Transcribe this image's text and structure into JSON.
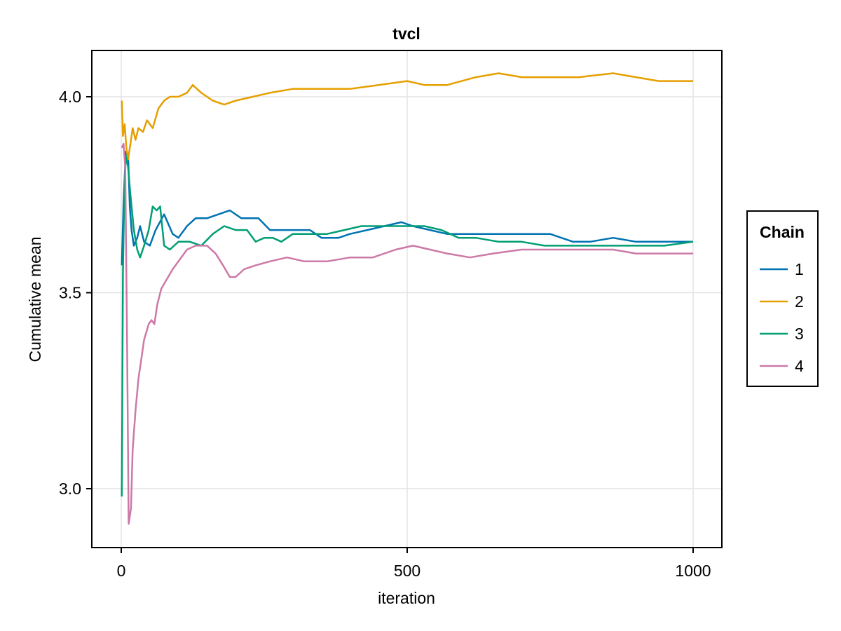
{
  "chart_data": {
    "type": "line",
    "title": "tvcl",
    "xlabel": "iteration",
    "ylabel": "Cumulative mean",
    "xlim": [
      -50,
      1050
    ],
    "ylim": [
      2.85,
      4.12
    ],
    "xticks": [
      0,
      500,
      1000
    ],
    "xtick_labels": [
      "0",
      "500",
      "1000"
    ],
    "yticks": [
      3.0,
      3.5,
      4.0
    ],
    "ytick_labels": [
      "3.0",
      "3.5",
      "4.0"
    ],
    "grid": true,
    "legend": {
      "title": "Chain",
      "position": "right",
      "entries": [
        "1",
        "2",
        "3",
        "4"
      ]
    },
    "series": [
      {
        "name": "1",
        "color": "#0072B2",
        "points": [
          [
            1,
            3.57
          ],
          [
            4,
            3.73
          ],
          [
            8,
            3.86
          ],
          [
            12,
            3.85
          ],
          [
            15,
            3.72
          ],
          [
            18,
            3.66
          ],
          [
            22,
            3.62
          ],
          [
            28,
            3.64
          ],
          [
            33,
            3.67
          ],
          [
            40,
            3.63
          ],
          [
            50,
            3.62
          ],
          [
            60,
            3.66
          ],
          [
            75,
            3.7
          ],
          [
            90,
            3.65
          ],
          [
            100,
            3.64
          ],
          [
            115,
            3.67
          ],
          [
            130,
            3.69
          ],
          [
            150,
            3.69
          ],
          [
            170,
            3.7
          ],
          [
            190,
            3.71
          ],
          [
            210,
            3.69
          ],
          [
            240,
            3.69
          ],
          [
            260,
            3.66
          ],
          [
            280,
            3.66
          ],
          [
            300,
            3.66
          ],
          [
            330,
            3.66
          ],
          [
            350,
            3.64
          ],
          [
            380,
            3.64
          ],
          [
            400,
            3.65
          ],
          [
            430,
            3.66
          ],
          [
            460,
            3.67
          ],
          [
            490,
            3.68
          ],
          [
            510,
            3.67
          ],
          [
            540,
            3.66
          ],
          [
            570,
            3.65
          ],
          [
            600,
            3.65
          ],
          [
            650,
            3.65
          ],
          [
            700,
            3.65
          ],
          [
            750,
            3.65
          ],
          [
            790,
            3.63
          ],
          [
            820,
            3.63
          ],
          [
            860,
            3.64
          ],
          [
            900,
            3.63
          ],
          [
            940,
            3.63
          ],
          [
            970,
            3.63
          ],
          [
            1000,
            3.63
          ]
        ]
      },
      {
        "name": "2",
        "color": "#E69F00",
        "points": [
          [
            1,
            3.99
          ],
          [
            3,
            3.9
          ],
          [
            6,
            3.93
          ],
          [
            9,
            3.87
          ],
          [
            12,
            3.84
          ],
          [
            16,
            3.88
          ],
          [
            20,
            3.92
          ],
          [
            25,
            3.89
          ],
          [
            30,
            3.92
          ],
          [
            38,
            3.91
          ],
          [
            45,
            3.94
          ],
          [
            55,
            3.92
          ],
          [
            65,
            3.97
          ],
          [
            75,
            3.99
          ],
          [
            85,
            4.0
          ],
          [
            100,
            4.0
          ],
          [
            115,
            4.01
          ],
          [
            125,
            4.03
          ],
          [
            140,
            4.01
          ],
          [
            160,
            3.99
          ],
          [
            180,
            3.98
          ],
          [
            200,
            3.99
          ],
          [
            230,
            4.0
          ],
          [
            260,
            4.01
          ],
          [
            300,
            4.02
          ],
          [
            350,
            4.02
          ],
          [
            400,
            4.02
          ],
          [
            450,
            4.03
          ],
          [
            500,
            4.04
          ],
          [
            530,
            4.03
          ],
          [
            570,
            4.03
          ],
          [
            620,
            4.05
          ],
          [
            660,
            4.06
          ],
          [
            700,
            4.05
          ],
          [
            750,
            4.05
          ],
          [
            800,
            4.05
          ],
          [
            860,
            4.06
          ],
          [
            900,
            4.05
          ],
          [
            940,
            4.04
          ],
          [
            970,
            4.04
          ],
          [
            1000,
            4.04
          ]
        ]
      },
      {
        "name": "3",
        "color": "#009E73",
        "points": [
          [
            1,
            2.98
          ],
          [
            3,
            3.55
          ],
          [
            5,
            3.73
          ],
          [
            8,
            3.85
          ],
          [
            12,
            3.82
          ],
          [
            16,
            3.75
          ],
          [
            22,
            3.66
          ],
          [
            28,
            3.61
          ],
          [
            33,
            3.59
          ],
          [
            40,
            3.62
          ],
          [
            48,
            3.66
          ],
          [
            55,
            3.72
          ],
          [
            62,
            3.71
          ],
          [
            68,
            3.72
          ],
          [
            75,
            3.62
          ],
          [
            85,
            3.61
          ],
          [
            100,
            3.63
          ],
          [
            120,
            3.63
          ],
          [
            140,
            3.62
          ],
          [
            160,
            3.65
          ],
          [
            180,
            3.67
          ],
          [
            200,
            3.66
          ],
          [
            220,
            3.66
          ],
          [
            235,
            3.63
          ],
          [
            250,
            3.64
          ],
          [
            265,
            3.64
          ],
          [
            280,
            3.63
          ],
          [
            300,
            3.65
          ],
          [
            330,
            3.65
          ],
          [
            360,
            3.65
          ],
          [
            390,
            3.66
          ],
          [
            420,
            3.67
          ],
          [
            450,
            3.67
          ],
          [
            480,
            3.67
          ],
          [
            500,
            3.67
          ],
          [
            530,
            3.67
          ],
          [
            560,
            3.66
          ],
          [
            590,
            3.64
          ],
          [
            620,
            3.64
          ],
          [
            660,
            3.63
          ],
          [
            700,
            3.63
          ],
          [
            740,
            3.62
          ],
          [
            780,
            3.62
          ],
          [
            820,
            3.62
          ],
          [
            860,
            3.62
          ],
          [
            900,
            3.62
          ],
          [
            950,
            3.62
          ],
          [
            1000,
            3.63
          ]
        ]
      },
      {
        "name": "4",
        "color": "#CC79A7",
        "points": [
          [
            1,
            3.87
          ],
          [
            4,
            3.88
          ],
          [
            7,
            3.82
          ],
          [
            10,
            3.4
          ],
          [
            13,
            2.91
          ],
          [
            17,
            2.95
          ],
          [
            20,
            3.1
          ],
          [
            25,
            3.2
          ],
          [
            30,
            3.28
          ],
          [
            35,
            3.33
          ],
          [
            40,
            3.38
          ],
          [
            48,
            3.42
          ],
          [
            53,
            3.43
          ],
          [
            58,
            3.42
          ],
          [
            63,
            3.47
          ],
          [
            70,
            3.51
          ],
          [
            78,
            3.53
          ],
          [
            90,
            3.56
          ],
          [
            100,
            3.58
          ],
          [
            115,
            3.61
          ],
          [
            130,
            3.62
          ],
          [
            150,
            3.62
          ],
          [
            165,
            3.6
          ],
          [
            178,
            3.57
          ],
          [
            190,
            3.54
          ],
          [
            200,
            3.54
          ],
          [
            215,
            3.56
          ],
          [
            235,
            3.57
          ],
          [
            260,
            3.58
          ],
          [
            290,
            3.59
          ],
          [
            320,
            3.58
          ],
          [
            360,
            3.58
          ],
          [
            400,
            3.59
          ],
          [
            440,
            3.59
          ],
          [
            480,
            3.61
          ],
          [
            510,
            3.62
          ],
          [
            540,
            3.61
          ],
          [
            570,
            3.6
          ],
          [
            610,
            3.59
          ],
          [
            650,
            3.6
          ],
          [
            700,
            3.61
          ],
          [
            740,
            3.61
          ],
          [
            780,
            3.61
          ],
          [
            820,
            3.61
          ],
          [
            860,
            3.61
          ],
          [
            900,
            3.6
          ],
          [
            950,
            3.6
          ],
          [
            1000,
            3.6
          ]
        ]
      }
    ]
  }
}
